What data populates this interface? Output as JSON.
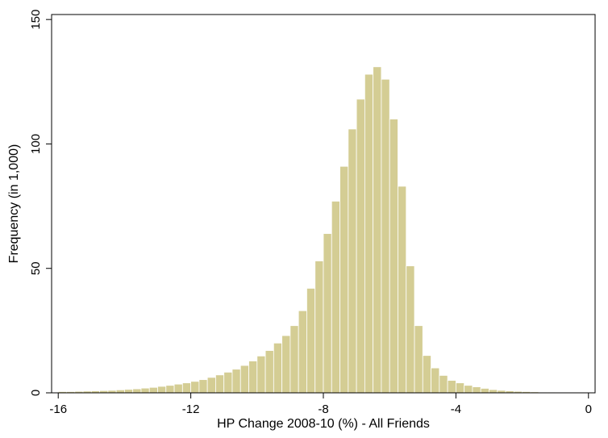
{
  "chart_data": {
    "type": "bar",
    "title": "",
    "xlabel": "HP Change 2008-10 (%) - All Friends",
    "ylabel": "Frequency (in 1,000)",
    "xlim": [
      -16.2,
      0.2
    ],
    "ylim": [
      0,
      152
    ],
    "xticks": [
      -16,
      -12,
      -8,
      -4,
      0
    ],
    "xtick_labels": [
      "-16",
      "-12",
      "-8",
      "-4",
      "0"
    ],
    "yticks": [
      0,
      50,
      100,
      150
    ],
    "ytick_labels": [
      "0",
      "50",
      "100",
      "150"
    ],
    "grid": false,
    "legend": "none",
    "bar_color": "#d4cd94",
    "bar_edge_color": "#ffffff",
    "bin_width": 0.25,
    "bin_left_edges": [
      -16.0,
      -15.75,
      -15.5,
      -15.25,
      -15.0,
      -14.75,
      -14.5,
      -14.25,
      -14.0,
      -13.75,
      -13.5,
      -13.25,
      -13.0,
      -12.75,
      -12.5,
      -12.25,
      -12.0,
      -11.75,
      -11.5,
      -11.25,
      -11.0,
      -10.75,
      -10.5,
      -10.25,
      -10.0,
      -9.75,
      -9.5,
      -9.25,
      -9.0,
      -8.75,
      -8.5,
      -8.25,
      -8.0,
      -7.75,
      -7.5,
      -7.25,
      -7.0,
      -6.75,
      -6.5,
      -6.25,
      -6.0,
      -5.75,
      -5.5,
      -5.25,
      -5.0,
      -4.75,
      -4.5,
      -4.25,
      -4.0,
      -3.75,
      -3.5,
      -3.25,
      -3.0,
      -2.75,
      -2.5,
      -2.25,
      -2.0,
      -1.75,
      -1.5,
      -1.25,
      -1.0,
      -0.75,
      -0.5,
      -0.25
    ],
    "values": [
      0.5,
      0.5,
      0.6,
      0.7,
      0.8,
      0.9,
      1.0,
      1.2,
      1.4,
      1.6,
      1.9,
      2.2,
      2.6,
      3.0,
      3.5,
      4.0,
      4.6,
      5.3,
      6.2,
      7.2,
      8.3,
      9.5,
      11.0,
      12.8,
      14.8,
      17.0,
      20.0,
      23.0,
      27.0,
      33.0,
      42.0,
      53.0,
      64.0,
      77.0,
      91.0,
      106.0,
      118.0,
      128.0,
      131.0,
      126.0,
      110.0,
      83.0,
      51.0,
      27.0,
      15.0,
      10.0,
      7.0,
      5.0,
      4.0,
      3.0,
      2.4,
      1.8,
      1.3,
      1.0,
      0.8,
      0.6,
      0.5,
      0.4,
      0.3,
      0.3,
      0.2,
      0.2,
      0.2,
      0.1
    ]
  }
}
